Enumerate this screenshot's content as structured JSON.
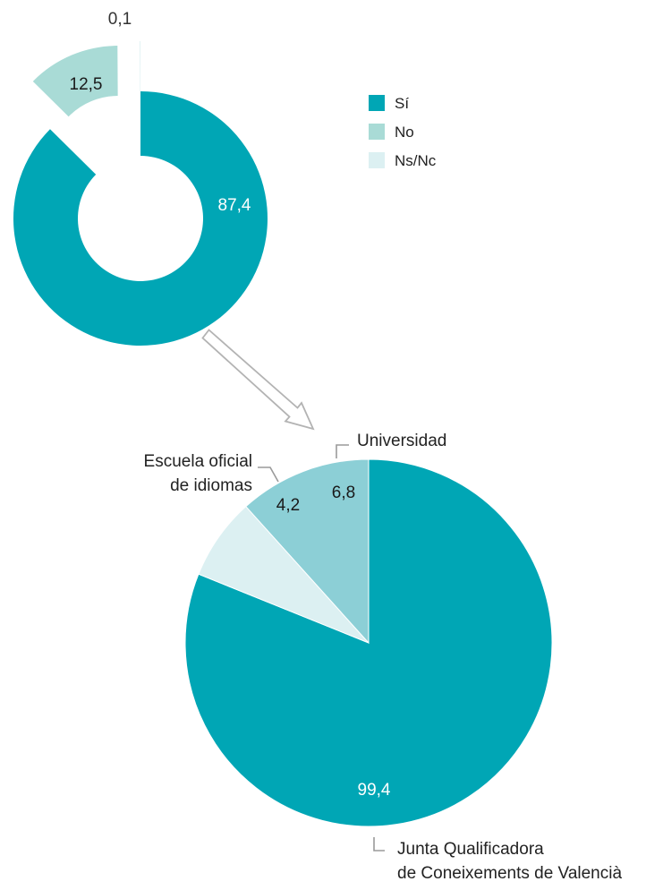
{
  "chart_data": [
    {
      "type": "donut",
      "categories": [
        "Sí",
        "No",
        "Ns/Nc"
      ],
      "values": [
        87.4,
        12.5,
        0.1
      ],
      "value_labels": [
        "87,4",
        "12,5",
        "0,1"
      ],
      "exploded": [
        "No",
        "Ns/Nc"
      ],
      "legend": {
        "entries": [
          "Sí",
          "No",
          "Ns/Nc"
        ],
        "placement": "right"
      },
      "colors": {
        "Sí": "#00a6b5",
        "No": "#a9dbd6",
        "Ns/Nc": "#dcf0f2"
      }
    },
    {
      "type": "pie",
      "categories": [
        "Junta Qualificadora de Coneixements de Valencià",
        "Escuela oficial de idiomas",
        "Universidad"
      ],
      "labels": {
        "junta_line1": "Junta Qualificadora",
        "junta_line2": "de Coneixements de Valencià",
        "escuela_line1": "Escuela oficial",
        "escuela_line2": "de idiomas",
        "universidad": "Universidad"
      },
      "values": [
        99.4,
        4.2,
        6.8
      ],
      "value_labels": [
        "99,4",
        "4,2",
        "6,8"
      ],
      "colors": {
        "junta": "#00a6b5",
        "escuela": "#dcf0f2",
        "universidad": "#8ccfd6"
      }
    }
  ]
}
